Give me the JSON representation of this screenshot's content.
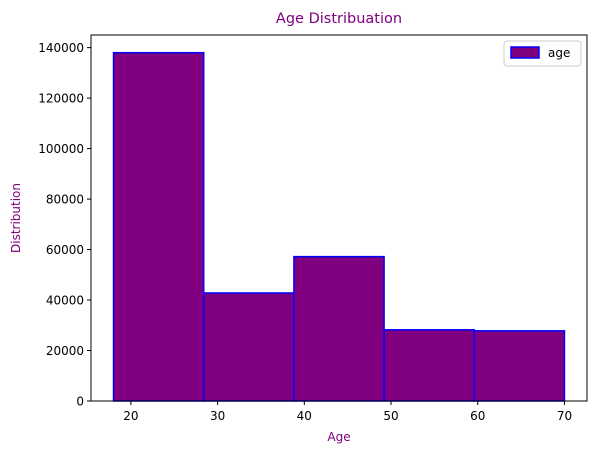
{
  "chart_data": {
    "type": "bar",
    "subtype": "histogram",
    "title": "Age Distribuation",
    "xlabel": "Age",
    "ylabel": "Distribution",
    "bins": [
      {
        "start": 18,
        "end": 28.4,
        "value": 138000
      },
      {
        "start": 28.4,
        "end": 38.8,
        "value": 42800
      },
      {
        "start": 38.8,
        "end": 49.2,
        "value": 57200
      },
      {
        "start": 49.2,
        "end": 59.6,
        "value": 28200
      },
      {
        "start": 59.6,
        "end": 70,
        "value": 27800
      }
    ],
    "series": [
      {
        "name": "age"
      }
    ],
    "xlim": [
      15.4,
      72.6
    ],
    "ylim": [
      0,
      145000
    ],
    "xticks": [
      20,
      30,
      40,
      50,
      60,
      70
    ],
    "yticks": [
      0,
      20000,
      40000,
      60000,
      80000,
      100000,
      120000,
      140000
    ],
    "grid": false,
    "legend": "top-right",
    "colors": {
      "bar_fill": "#800080",
      "bar_edge": "#0000ff",
      "title": "#800080",
      "axis_title": "#800080"
    }
  }
}
